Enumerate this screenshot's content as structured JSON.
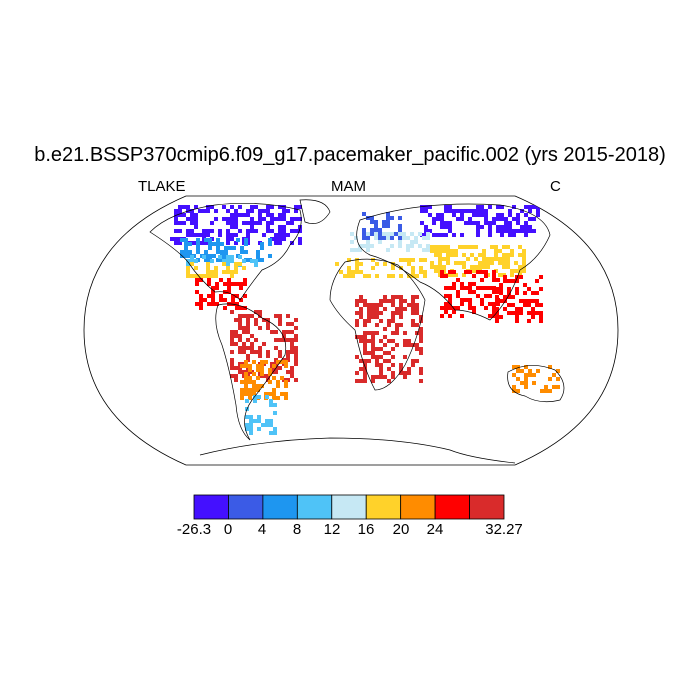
{
  "title": "b.e21.BSSP370cmip6.f09_g17.pacemaker_pacific.002 (yrs 2015-2018)",
  "variable": "TLAKE",
  "season": "MAM",
  "units": "C",
  "colorbar": {
    "colors": [
      "#4410ff",
      "#3b5be6",
      "#1e96f0",
      "#4fc3f7",
      "#c6e8f4",
      "#ffd22a",
      "#ff8c00",
      "#ff0000",
      "#d92b2b"
    ],
    "labels": [
      "-26.3",
      "0",
      "4",
      "8",
      "12",
      "16",
      "20",
      "24",
      "32.27"
    ]
  },
  "regions": [
    {
      "name": "north-canada",
      "color": "#4410ff"
    },
    {
      "name": "siberia",
      "color": "#4410ff"
    },
    {
      "name": "scandinavia",
      "color": "#3b5be6"
    },
    {
      "name": "central-canada",
      "color": "#1e96f0"
    },
    {
      "name": "northern-us",
      "color": "#4fc3f7"
    },
    {
      "name": "europe",
      "color": "#c6e8f4"
    },
    {
      "name": "southern-us",
      "color": "#ffd22a"
    },
    {
      "name": "mediterranean",
      "color": "#ffd22a"
    },
    {
      "name": "central-asia",
      "color": "#ffd22a"
    },
    {
      "name": "mexico",
      "color": "#ff0000"
    },
    {
      "name": "amazon",
      "color": "#d92b2b"
    },
    {
      "name": "africa-tropics",
      "color": "#d92b2b"
    },
    {
      "name": "india",
      "color": "#ff0000"
    },
    {
      "name": "southeast-asia",
      "color": "#ff0000"
    },
    {
      "name": "argentina",
      "color": "#ff8c00"
    },
    {
      "name": "australia",
      "color": "#ff8c00"
    },
    {
      "name": "patagonia",
      "color": "#4fc3f7"
    }
  ]
}
